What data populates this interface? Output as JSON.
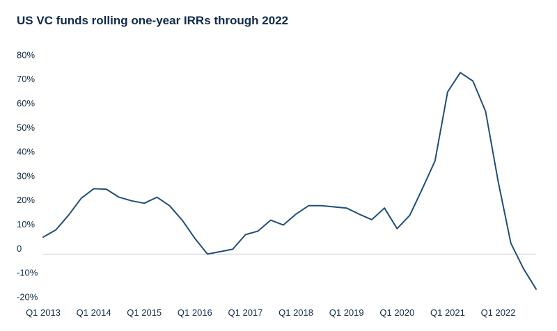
{
  "chart_data": {
    "type": "line",
    "title": "US VC funds rolling one-year IRRs through 2022",
    "xlabel": "",
    "ylabel": "",
    "x": [
      "Q1 2013",
      "Q2 2013",
      "Q3 2013",
      "Q4 2013",
      "Q1 2014",
      "Q2 2014",
      "Q3 2014",
      "Q4 2014",
      "Q1 2015",
      "Q2 2015",
      "Q3 2015",
      "Q4 2015",
      "Q1 2016",
      "Q2 2016",
      "Q3 2016",
      "Q4 2016",
      "Q1 2017",
      "Q2 2017",
      "Q3 2017",
      "Q4 2017",
      "Q1 2018",
      "Q2 2018",
      "Q3 2018",
      "Q4 2018",
      "Q1 2019",
      "Q2 2019",
      "Q3 2019",
      "Q4 2019",
      "Q1 2020",
      "Q2 2020",
      "Q3 2020",
      "Q4 2020",
      "Q1 2021",
      "Q2 2021",
      "Q3 2021",
      "Q4 2021",
      "Q1 2022",
      "Q2 2022",
      "Q3 2022",
      "Q4 2022"
    ],
    "x_tick_labels": [
      "Q1 2013",
      "Q1 2014",
      "Q1 2015",
      "Q1 2016",
      "Q1 2017",
      "Q1 2018",
      "Q1 2019",
      "Q1 2020",
      "Q1 2021",
      "Q1 2022"
    ],
    "series": [
      {
        "values": [
          5,
          8,
          14,
          21,
          25,
          24.8,
          21.5,
          20,
          19,
          21.5,
          18,
          12,
          4.5,
          -2,
          -1,
          0,
          6,
          7.5,
          12,
          10,
          14.5,
          18,
          18,
          17.5,
          17,
          14.5,
          12.2,
          17,
          8.5,
          14,
          25,
          36.5,
          65,
          73,
          69.5,
          57,
          28,
          2.5,
          -8,
          -16.5
        ]
      }
    ],
    "y_ticks": [
      -20,
      -10,
      0,
      10,
      20,
      30,
      40,
      50,
      60,
      70,
      80
    ],
    "y_tick_labels": [
      "-20%",
      "-10%",
      "0",
      "10%",
      "20%",
      "30%",
      "40%",
      "50%",
      "60%",
      "70%",
      "80%"
    ],
    "ylim": [
      -20,
      80
    ],
    "grid": false,
    "zero_line": true,
    "colors": {
      "line": "#1f4e79",
      "text": "#0f2a4a",
      "zero_line": "#c8c8c8"
    }
  }
}
